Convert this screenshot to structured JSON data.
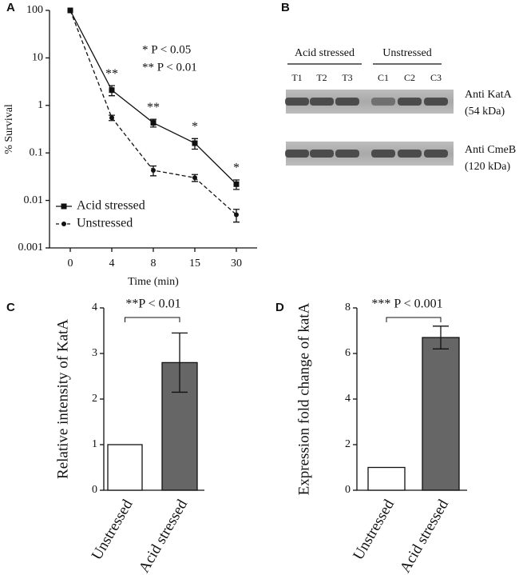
{
  "chart_data": [
    {
      "type": "line",
      "panel": "A",
      "xlabel": "Time (min)",
      "ylabel": "% Survival",
      "categories": [
        "0",
        "4",
        "8",
        "15",
        "30"
      ],
      "log_scale": true,
      "ylim": [
        0.001,
        100
      ],
      "yticks": [
        100,
        10,
        1,
        0.1,
        0.01,
        0.001
      ],
      "series": [
        {
          "name": "Acid stressed",
          "color": "#111111",
          "marker": "square",
          "dashed": false,
          "values": [
            100,
            2.1,
            0.43,
            0.16,
            0.022
          ],
          "errors": [
            null,
            0.5,
            0.08,
            0.04,
            0.005
          ]
        },
        {
          "name": "Unstressed",
          "color": "#111111",
          "marker": "circle",
          "dashed": true,
          "values": [
            100,
            0.55,
            0.043,
            0.03,
            0.005
          ],
          "errors": [
            null,
            0.07,
            0.01,
            0.005,
            0.0015
          ]
        }
      ],
      "significance": [
        null,
        "**",
        "**",
        "*",
        "*"
      ],
      "annotations": [
        "* P < 0.05",
        "** P < 0.01"
      ],
      "legend": "lower left"
    },
    {
      "type": "bar",
      "panel": "C",
      "ylabel": "Relative intensity of KatA",
      "categories": [
        "Unstressed",
        "Acid stressed"
      ],
      "values": [
        1,
        2.8
      ],
      "errors": [
        null,
        0.65
      ],
      "colors": [
        "#ffffff",
        "#666666"
      ],
      "ylim": [
        0,
        4
      ],
      "yticks": [
        0,
        1,
        2,
        3,
        4
      ],
      "annotation": "**P < 0.01"
    },
    {
      "type": "bar",
      "panel": "D",
      "ylabel": "Expression fold change of katA",
      "categories": [
        "Unstressed",
        "Acid stressed"
      ],
      "values": [
        1,
        6.7
      ],
      "errors": [
        null,
        0.5
      ],
      "colors": [
        "#ffffff",
        "#666666"
      ],
      "ylim": [
        0,
        8
      ],
      "yticks": [
        0,
        2,
        4,
        6,
        8
      ],
      "annotation": "*** P < 0.001"
    }
  ],
  "blot": {
    "panel": "B",
    "groups": [
      "Acid stressed",
      "Unstressed"
    ],
    "lanes": [
      "T1",
      "T2",
      "T3",
      "C1",
      "C2",
      "C3"
    ],
    "bands": [
      {
        "antibody": "Anti KatA",
        "size": "(54 kDa)"
      },
      {
        "antibody": "Anti CmeB",
        "size": "(120 kDa)"
      }
    ]
  }
}
